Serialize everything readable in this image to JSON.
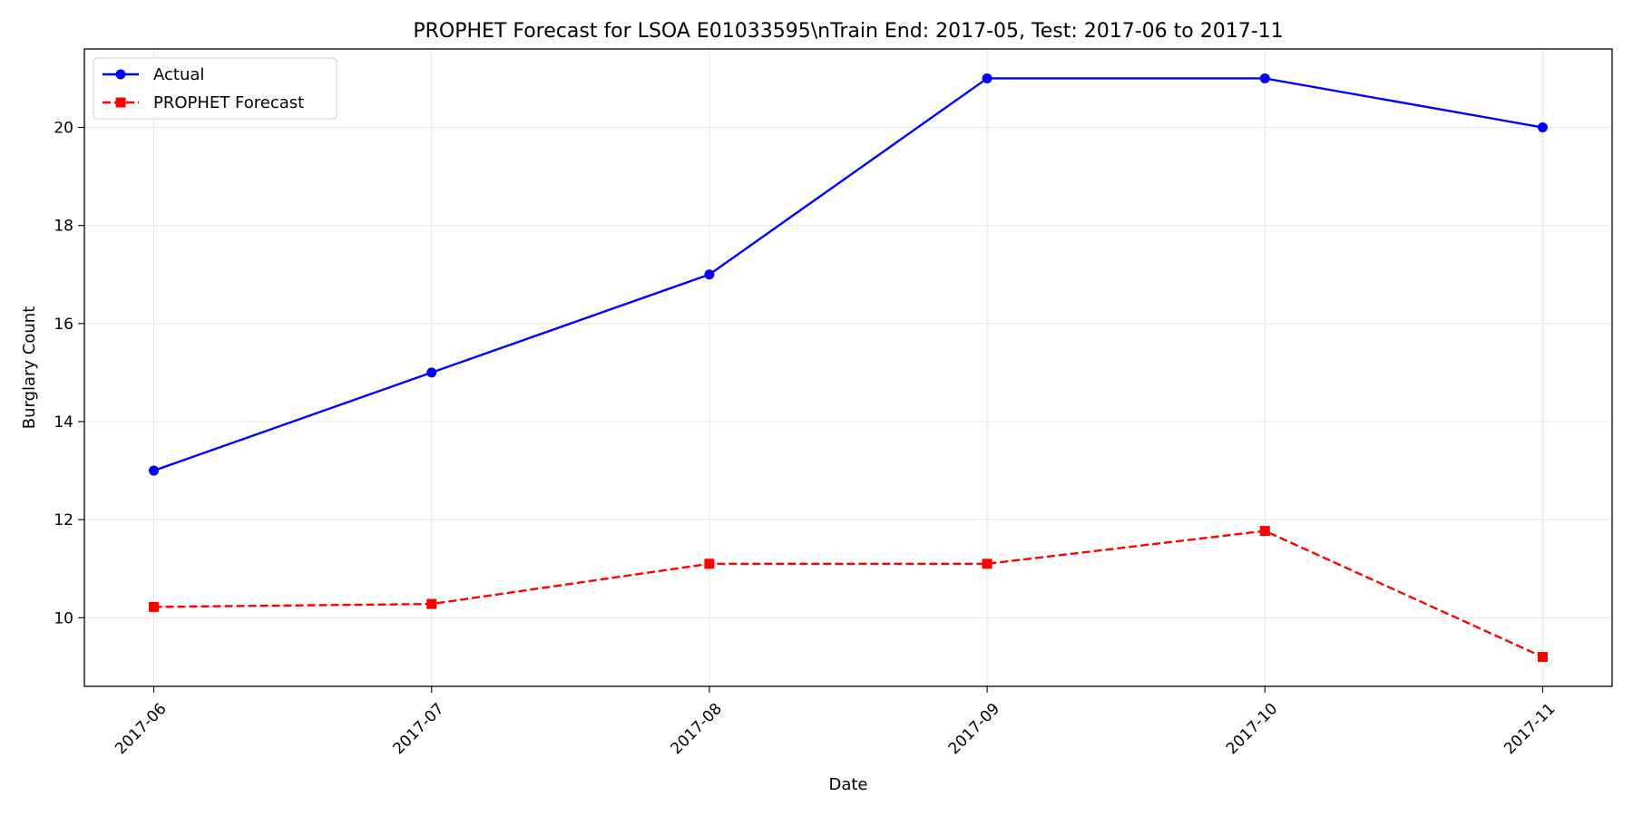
{
  "chart_data": {
    "type": "line",
    "title": "PROPHET Forecast for LSOA E01033595\\nTrain End: 2017-05, Test: 2017-06 to 2017-11",
    "xlabel": "Date",
    "ylabel": "Burglary Count",
    "x": [
      "2017-06",
      "2017-07",
      "2017-08",
      "2017-09",
      "2017-10",
      "2017-11"
    ],
    "ylim": [
      8.6,
      21.6
    ],
    "yticks": [
      10,
      12,
      14,
      16,
      18,
      20
    ],
    "grid": true,
    "legend_position": "top-left",
    "series": [
      {
        "name": "Actual",
        "values": [
          13,
          15,
          17,
          21,
          21,
          20
        ],
        "color": "#0000ff",
        "line_style": "solid",
        "marker": "circle"
      },
      {
        "name": "PROPHET Forecast",
        "values": [
          10.22,
          10.28,
          11.1,
          11.1,
          11.77,
          9.2
        ],
        "color": "#ff0000",
        "line_style": "dashed",
        "marker": "square"
      }
    ]
  }
}
